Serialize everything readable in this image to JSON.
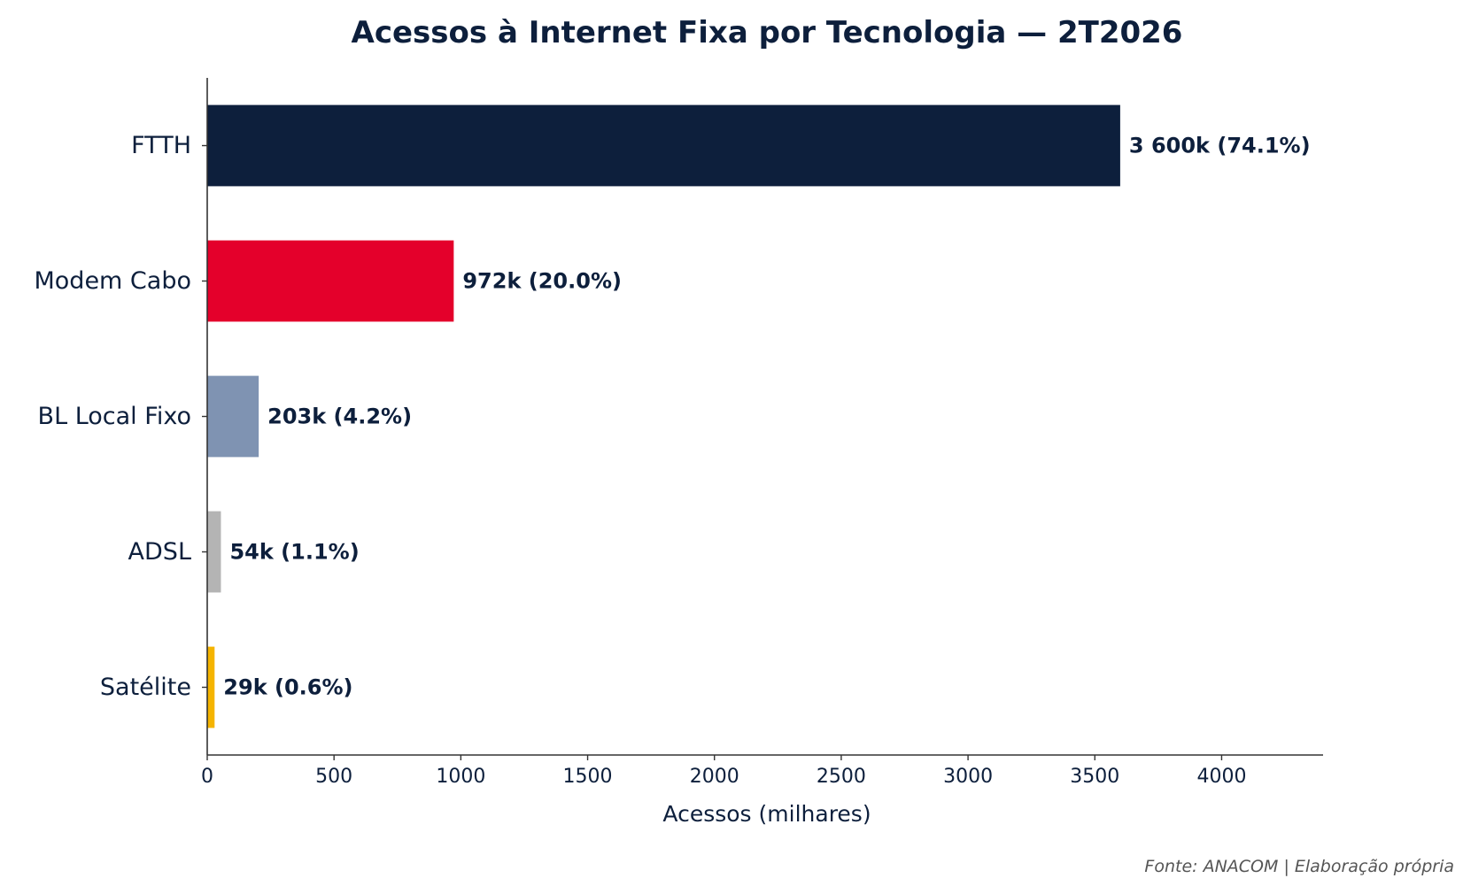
{
  "chart_data": {
    "type": "bar",
    "orientation": "horizontal",
    "title": "Acessos à Internet Fixa por Tecnologia — 2T2026",
    "xlabel": "Acessos (milhares)",
    "ylabel": "",
    "xlim": [
      0,
      4400
    ],
    "xticks": [
      0,
      500,
      1000,
      1500,
      2000,
      2500,
      3000,
      3500,
      4000
    ],
    "grid": false,
    "categories": [
      "FTTH",
      "Modem Cabo",
      "BL Local Fixo",
      "ADSL",
      "Satélite"
    ],
    "values": [
      3600,
      972,
      203,
      54,
      29
    ],
    "data_labels": [
      "3 600k  (74.1%)",
      "972k  (20.0%)",
      "203k  (4.2%)",
      "54k  (1.1%)",
      "29k  (0.6%)"
    ],
    "colors": [
      "#0d1f3c",
      "#e4002b",
      "#7f93b2",
      "#b4b4b4",
      "#f5b400"
    ],
    "source": "Fonte: ANACOM | Elaboração própria"
  }
}
